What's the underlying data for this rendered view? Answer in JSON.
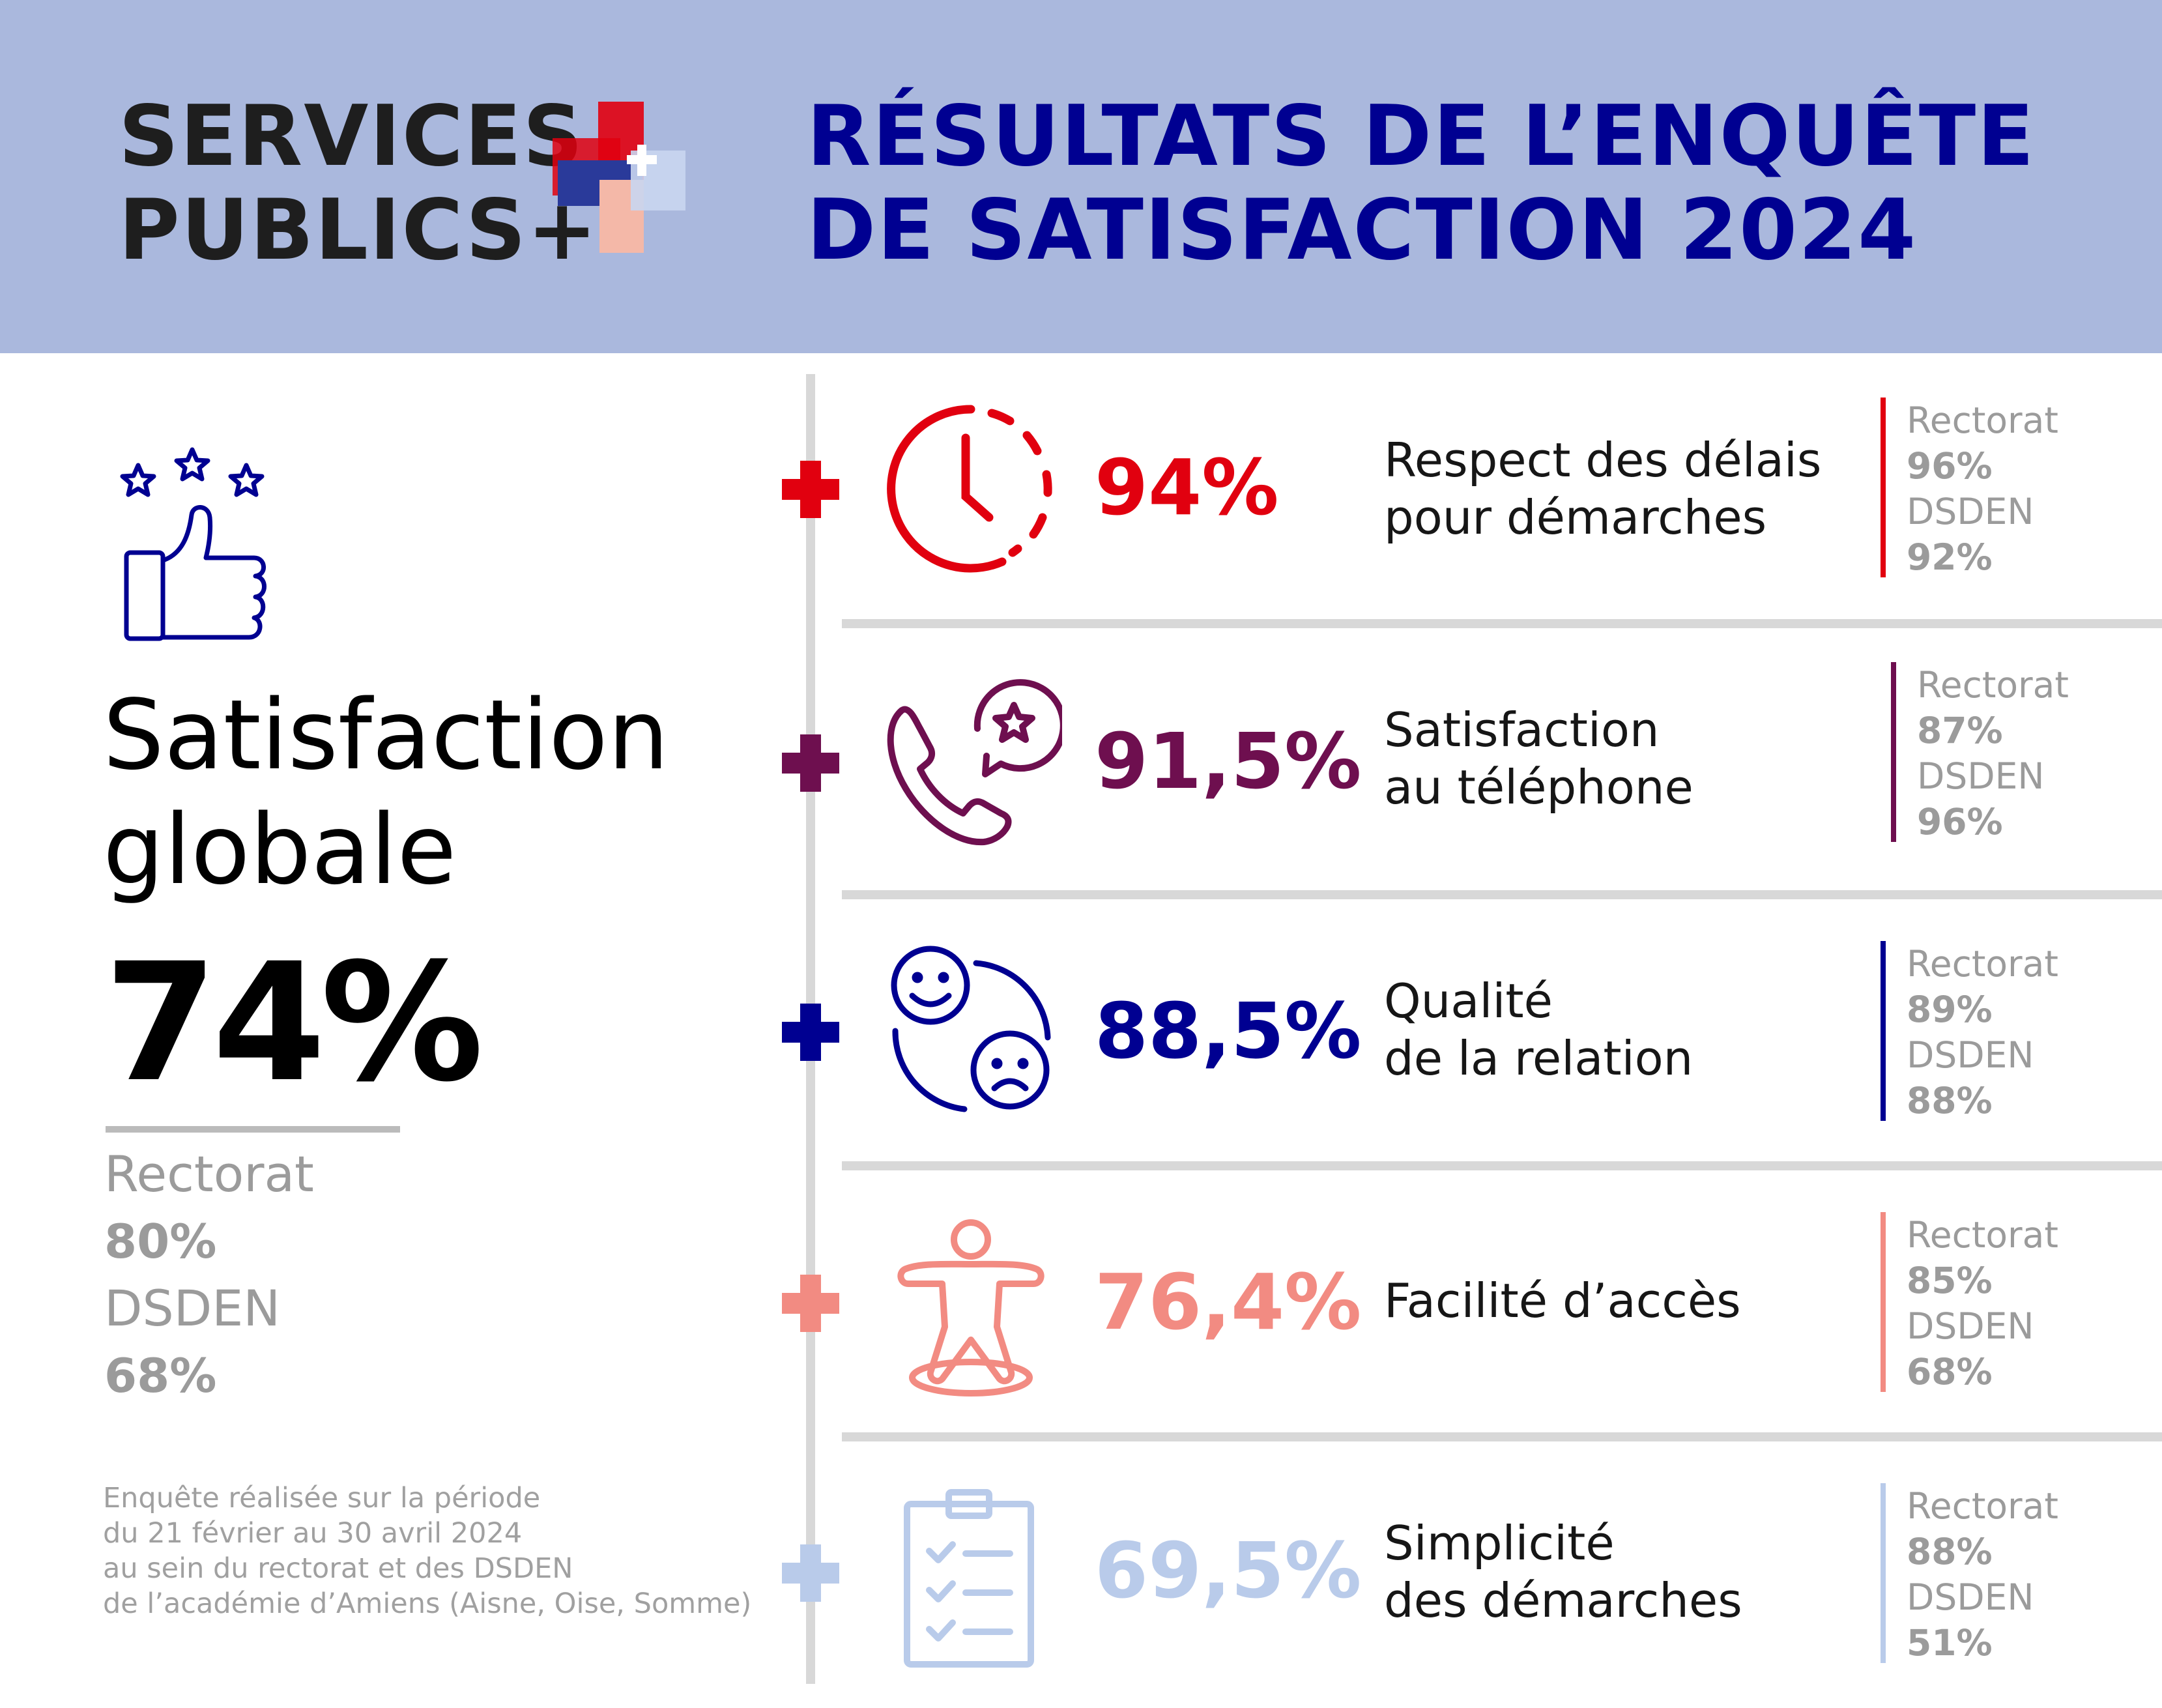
{
  "header": {
    "brand_line1": "SERVICES",
    "brand_line2": "PUBLICS+",
    "title_line1": "RÉSULTATS DE L’ENQUÊTE",
    "title_line2": "DE SATISFACTION 2024",
    "background_color": "#aab8dd",
    "title_color": "#000091"
  },
  "global": {
    "label_line1": "Satisfaction",
    "label_line2": "globale",
    "value": "74%",
    "rectorat_label": "Rectorat",
    "rectorat_value": "80%",
    "dsden_label": "DSDEN",
    "dsden_value": "68%",
    "icon": "thumbs-up-stars-icon"
  },
  "footnote": {
    "line1": "Enquête réalisée sur la période",
    "line2": "du 21 février au 30 avril 2024",
    "line3": "au sein du rectorat et des DSDEN",
    "line4": "de l’académie d’Amiens (Aisne, Oise, Somme)"
  },
  "criteria": [
    {
      "value": "94%",
      "label_line1": "Respect des délais",
      "label_line2": "pour démarches",
      "rectorat_label": "Rectorat",
      "rectorat_value": "96%",
      "dsden_label": "DSDEN",
      "dsden_value": "92%",
      "color": "#e1000f",
      "icon": "clock-icon"
    },
    {
      "value": "91,5%",
      "label_line1": "Satisfaction",
      "label_line2": "au téléphone",
      "rectorat_label": "Rectorat",
      "rectorat_value": "87%",
      "dsden_label": "DSDEN",
      "dsden_value": "96%",
      "color": "#6e0f4f",
      "icon": "phone-star-icon"
    },
    {
      "value": "88,5%",
      "label_line1": "Qualité",
      "label_line2": "de la relation",
      "rectorat_label": "Rectorat",
      "rectorat_value": "89%",
      "dsden_label": "DSDEN",
      "dsden_value": "88%",
      "color": "#000091",
      "icon": "smile-sad-faces-icon"
    },
    {
      "value": "76,4%",
      "label_line1": "Facilité d’accès",
      "label_line2": "",
      "rectorat_label": "Rectorat",
      "rectorat_value": "85%",
      "dsden_label": "DSDEN",
      "dsden_value": "68%",
      "color": "#f28b82",
      "icon": "accessibility-person-icon"
    },
    {
      "value": "69,5%",
      "label_line1": "Simplicité",
      "label_line2": "des démarches",
      "rectorat_label": "Rectorat",
      "rectorat_value": "88%",
      "dsden_label": "DSDEN",
      "dsden_value": "51%",
      "color": "#b9cbea",
      "icon": "clipboard-checklist-icon"
    }
  ]
}
